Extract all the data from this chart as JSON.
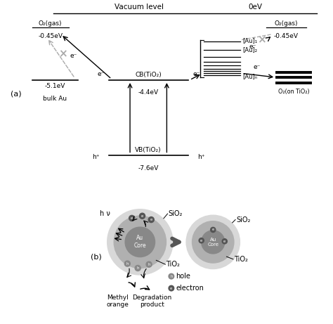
{
  "title_a": "(a)",
  "title_b": "(b)",
  "vacuum_label": "Vacuum level",
  "zero_label": "0eV",
  "o2_gas": "O₂(gas)",
  "o2_ontio2": "O₂(on TiO₂)",
  "cb_label": "CB(TiO₂)",
  "vb_label": "VB(TiO₂)",
  "bulk_au": "bulk Au",
  "au1": "[Au]₁",
  "au2": "[Au]₂",
  "aun": "[Au]ₙ",
  "e_minus": "e⁻",
  "h_plus": "h⁺",
  "energy_o2": "-0.45eV",
  "energy_au": "-5.1eV",
  "energy_cb": "-4.4eV",
  "energy_vb": "-7.6eV",
  "sio2": "SiO₂",
  "tio2": "TiO₂",
  "au_core": "Au\nCore",
  "hv": "h ν",
  "hole": "hole",
  "electron": "electron",
  "methyl_orange": "Methyl\norange",
  "degradation": "Degradation\nproduct",
  "bg_color": "#ffffff",
  "line_color": "#000000",
  "gray_color": "#aaaaaa",
  "light_gray": "#d8d8d8",
  "medium_gray": "#b0b0b0",
  "dark_gray": "#888888"
}
